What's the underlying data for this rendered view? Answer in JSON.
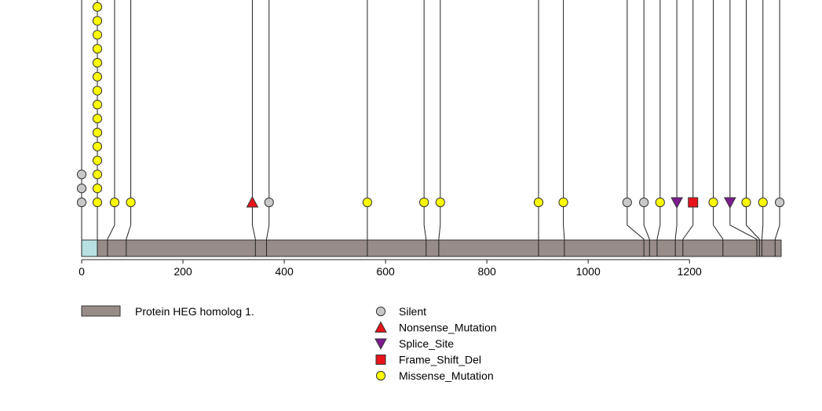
{
  "chart_data": {
    "type": "lollipop",
    "xlim": [
      0,
      1381
    ],
    "x_ticks": [
      "0",
      "200",
      "400",
      "600",
      "800",
      "1000",
      "1200"
    ],
    "x_tick_values": [
      0,
      200,
      400,
      600,
      800,
      1000,
      1200
    ],
    "protein_length": 1381,
    "domains": [
      {
        "name": "Protein HEG homolog 1.",
        "start": 0,
        "end": 1381,
        "color": "#978c88"
      }
    ],
    "signal_region": {
      "start": 0,
      "end": 30,
      "color": "#b8e0e3"
    },
    "mutation_types": [
      {
        "label": "Silent",
        "shape": "circle",
        "color": "#c8c8c8"
      },
      {
        "label": "Nonsense_Mutation",
        "shape": "triangle-up",
        "color": "#e8141a"
      },
      {
        "label": "Splice_Site",
        "shape": "triangle-down",
        "color": "#7d1c8e"
      },
      {
        "label": "Frame_Shift_Del",
        "shape": "square",
        "color": "#e8141a"
      },
      {
        "label": "Missense_Mutation",
        "shape": "circle",
        "color": "#ffff00"
      }
    ],
    "mutations": [
      {
        "position": 0,
        "label_position": 0,
        "stack": [
          "Silent",
          "Silent",
          "Silent"
        ]
      },
      {
        "position": 31,
        "label_position": 31,
        "stack": [
          "Missense_Mutation",
          "Missense_Mutation",
          "Missense_Mutation",
          "Missense_Mutation",
          "Missense_Mutation",
          "Missense_Mutation",
          "Missense_Mutation",
          "Missense_Mutation",
          "Missense_Mutation",
          "Missense_Mutation",
          "Missense_Mutation",
          "Missense_Mutation",
          "Missense_Mutation",
          "Missense_Mutation",
          "Missense_Mutation",
          "Missense_Mutation"
        ]
      },
      {
        "position": 51,
        "label_position": 65,
        "stack": [
          "Missense_Mutation"
        ]
      },
      {
        "position": 88,
        "label_position": 97,
        "stack": [
          "Missense_Mutation"
        ]
      },
      {
        "position": 343,
        "label_position": 337,
        "stack": [
          "Nonsense_Mutation"
        ]
      },
      {
        "position": 365,
        "label_position": 370,
        "stack": [
          "Silent"
        ]
      },
      {
        "position": 564,
        "label_position": 564,
        "stack": [
          "Missense_Mutation"
        ]
      },
      {
        "position": 680,
        "label_position": 676,
        "stack": [
          "Missense_Mutation"
        ]
      },
      {
        "position": 705,
        "label_position": 708,
        "stack": [
          "Missense_Mutation"
        ]
      },
      {
        "position": 902,
        "label_position": 902,
        "stack": [
          "Missense_Mutation"
        ]
      },
      {
        "position": 953,
        "label_position": 951,
        "stack": [
          "Missense_Mutation"
        ]
      },
      {
        "position": 1110,
        "label_position": 1077,
        "stack": [
          "Silent"
        ]
      },
      {
        "position": 1121,
        "label_position": 1110,
        "stack": [
          "Silent"
        ]
      },
      {
        "position": 1136,
        "label_position": 1142,
        "stack": [
          "Missense_Mutation"
        ]
      },
      {
        "position": 1172,
        "label_position": 1175,
        "stack": [
          "Splice_Site"
        ]
      },
      {
        "position": 1187,
        "label_position": 1207,
        "stack": [
          "Frame_Shift_Del"
        ]
      },
      {
        "position": 1266,
        "label_position": 1247,
        "stack": [
          "Missense_Mutation"
        ]
      },
      {
        "position": 1333,
        "label_position": 1280,
        "stack": [
          "Splice_Site"
        ]
      },
      {
        "position": 1338,
        "label_position": 1312,
        "stack": [
          "Missense_Mutation"
        ]
      },
      {
        "position": 1343,
        "label_position": 1345,
        "stack": [
          "Missense_Mutation"
        ]
      },
      {
        "position": 1369,
        "label_position": 1378,
        "stack": [
          "Silent"
        ]
      }
    ],
    "legend": {
      "domain_label": "Protein HEG homolog 1."
    }
  }
}
